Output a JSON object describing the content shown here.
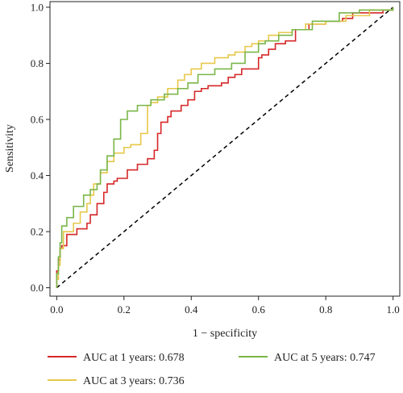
{
  "chart_data": {
    "type": "line",
    "title": "",
    "xlabel": "1 − specificity",
    "ylabel": "Sensitivity",
    "xlim": [
      -0.02,
      1.02
    ],
    "ylim": [
      -0.03,
      1.02
    ],
    "x_ticks": [
      0.0,
      0.2,
      0.4,
      0.6,
      0.8,
      1.0
    ],
    "x_tick_labels": [
      "0.0",
      "0.2",
      "0.4",
      "0.6",
      "0.8",
      "1.0"
    ],
    "y_ticks": [
      0.0,
      0.2,
      0.4,
      0.6,
      0.8,
      1.0
    ],
    "y_tick_labels": [
      "0.0",
      "0.2",
      "0.4",
      "0.6",
      "0.8",
      "1.0"
    ],
    "grid": false,
    "legend_position": "bottom",
    "reference_line": {
      "from": [
        0,
        0
      ],
      "to": [
        1,
        1
      ],
      "style": "dashed",
      "color": "#000000"
    },
    "series": [
      {
        "name": "AUC at 1 years: 0.678",
        "color": "#d62728",
        "x": [
          0.0,
          0.0,
          0.005,
          0.005,
          0.01,
          0.01,
          0.015,
          0.015,
          0.03,
          0.03,
          0.06,
          0.06,
          0.09,
          0.09,
          0.1,
          0.1,
          0.12,
          0.12,
          0.14,
          0.14,
          0.15,
          0.15,
          0.17,
          0.17,
          0.18,
          0.18,
          0.21,
          0.21,
          0.24,
          0.24,
          0.27,
          0.27,
          0.29,
          0.29,
          0.3,
          0.3,
          0.31,
          0.31,
          0.33,
          0.33,
          0.34,
          0.34,
          0.37,
          0.37,
          0.39,
          0.39,
          0.41,
          0.41,
          0.43,
          0.43,
          0.45,
          0.45,
          0.49,
          0.49,
          0.51,
          0.51,
          0.53,
          0.53,
          0.55,
          0.55,
          0.6,
          0.6,
          0.61,
          0.61,
          0.63,
          0.63,
          0.65,
          0.65,
          0.68,
          0.68,
          0.71,
          0.71,
          0.75,
          0.75,
          0.8,
          0.8,
          0.85,
          0.85,
          0.88,
          0.88,
          0.97,
          0.97,
          1.0,
          1.0
        ],
        "y": [
          0.0,
          0.06,
          0.06,
          0.1,
          0.1,
          0.14,
          0.14,
          0.15,
          0.15,
          0.19,
          0.19,
          0.21,
          0.21,
          0.23,
          0.23,
          0.26,
          0.26,
          0.3,
          0.3,
          0.34,
          0.34,
          0.37,
          0.37,
          0.38,
          0.38,
          0.39,
          0.39,
          0.42,
          0.42,
          0.44,
          0.44,
          0.46,
          0.46,
          0.49,
          0.49,
          0.55,
          0.55,
          0.59,
          0.59,
          0.61,
          0.61,
          0.63,
          0.63,
          0.65,
          0.65,
          0.67,
          0.67,
          0.7,
          0.7,
          0.71,
          0.71,
          0.72,
          0.72,
          0.73,
          0.73,
          0.75,
          0.75,
          0.76,
          0.76,
          0.78,
          0.78,
          0.82,
          0.82,
          0.83,
          0.83,
          0.85,
          0.85,
          0.87,
          0.87,
          0.88,
          0.88,
          0.92,
          0.92,
          0.94,
          0.94,
          0.95,
          0.95,
          0.96,
          0.96,
          0.98,
          0.98,
          0.99,
          0.99,
          1.0
        ]
      },
      {
        "name": "AUC at 3 years: 0.736",
        "color": "#e6c84a",
        "x": [
          0.0,
          0.0,
          0.005,
          0.005,
          0.01,
          0.01,
          0.02,
          0.02,
          0.05,
          0.05,
          0.07,
          0.07,
          0.09,
          0.09,
          0.1,
          0.1,
          0.11,
          0.11,
          0.13,
          0.13,
          0.15,
          0.15,
          0.17,
          0.17,
          0.2,
          0.2,
          0.22,
          0.22,
          0.25,
          0.25,
          0.27,
          0.27,
          0.28,
          0.28,
          0.3,
          0.3,
          0.33,
          0.33,
          0.36,
          0.36,
          0.38,
          0.38,
          0.4,
          0.4,
          0.43,
          0.43,
          0.47,
          0.47,
          0.51,
          0.51,
          0.53,
          0.53,
          0.56,
          0.56,
          0.58,
          0.58,
          0.6,
          0.6,
          0.63,
          0.63,
          0.66,
          0.66,
          0.7,
          0.7,
          0.74,
          0.74,
          0.8,
          0.8,
          0.86,
          0.86,
          0.93,
          0.93,
          1.0,
          1.0
        ],
        "y": [
          0.0,
          0.03,
          0.03,
          0.08,
          0.08,
          0.14,
          0.14,
          0.2,
          0.2,
          0.23,
          0.23,
          0.27,
          0.27,
          0.3,
          0.3,
          0.33,
          0.33,
          0.37,
          0.37,
          0.41,
          0.41,
          0.45,
          0.45,
          0.48,
          0.48,
          0.5,
          0.5,
          0.51,
          0.51,
          0.55,
          0.55,
          0.65,
          0.65,
          0.66,
          0.66,
          0.68,
          0.68,
          0.71,
          0.71,
          0.74,
          0.74,
          0.76,
          0.76,
          0.78,
          0.78,
          0.8,
          0.8,
          0.82,
          0.82,
          0.83,
          0.83,
          0.84,
          0.84,
          0.86,
          0.86,
          0.87,
          0.87,
          0.88,
          0.88,
          0.9,
          0.9,
          0.91,
          0.91,
          0.92,
          0.92,
          0.94,
          0.94,
          0.95,
          0.95,
          0.97,
          0.97,
          0.99,
          0.99,
          1.0
        ]
      },
      {
        "name": "AUC at 5 years: 0.747",
        "color": "#7ab648",
        "x": [
          0.0,
          0.0,
          0.005,
          0.005,
          0.01,
          0.01,
          0.015,
          0.015,
          0.03,
          0.03,
          0.05,
          0.05,
          0.08,
          0.08,
          0.1,
          0.1,
          0.12,
          0.12,
          0.13,
          0.13,
          0.15,
          0.15,
          0.17,
          0.17,
          0.19,
          0.19,
          0.21,
          0.21,
          0.24,
          0.24,
          0.28,
          0.28,
          0.32,
          0.32,
          0.36,
          0.36,
          0.39,
          0.39,
          0.42,
          0.42,
          0.47,
          0.47,
          0.52,
          0.52,
          0.56,
          0.56,
          0.6,
          0.6,
          0.62,
          0.62,
          0.66,
          0.66,
          0.7,
          0.7,
          0.76,
          0.76,
          0.84,
          0.84,
          0.9,
          0.9,
          1.0,
          1.0
        ],
        "y": [
          0.0,
          0.05,
          0.05,
          0.11,
          0.11,
          0.16,
          0.16,
          0.22,
          0.22,
          0.25,
          0.25,
          0.29,
          0.29,
          0.33,
          0.33,
          0.35,
          0.35,
          0.37,
          0.37,
          0.42,
          0.42,
          0.47,
          0.47,
          0.53,
          0.53,
          0.6,
          0.6,
          0.63,
          0.63,
          0.65,
          0.65,
          0.67,
          0.67,
          0.69,
          0.69,
          0.71,
          0.71,
          0.73,
          0.73,
          0.76,
          0.76,
          0.78,
          0.78,
          0.8,
          0.8,
          0.84,
          0.84,
          0.87,
          0.87,
          0.88,
          0.88,
          0.9,
          0.9,
          0.92,
          0.92,
          0.95,
          0.95,
          0.98,
          0.98,
          0.99,
          0.99,
          1.0
        ]
      }
    ]
  }
}
